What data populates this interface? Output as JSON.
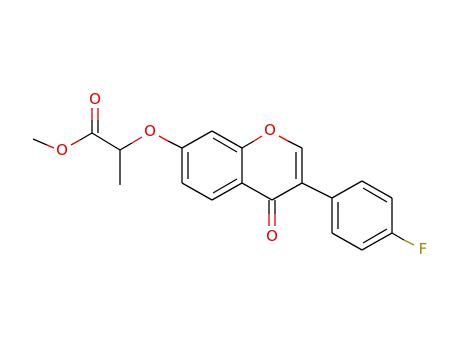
{
  "atoms": [
    {
      "label": "O"
    },
    {
      "label": "O"
    },
    {
      "label": "O"
    },
    {
      "label": "O"
    },
    {
      "label": "O"
    },
    {
      "label": "F"
    }
  ]
}
